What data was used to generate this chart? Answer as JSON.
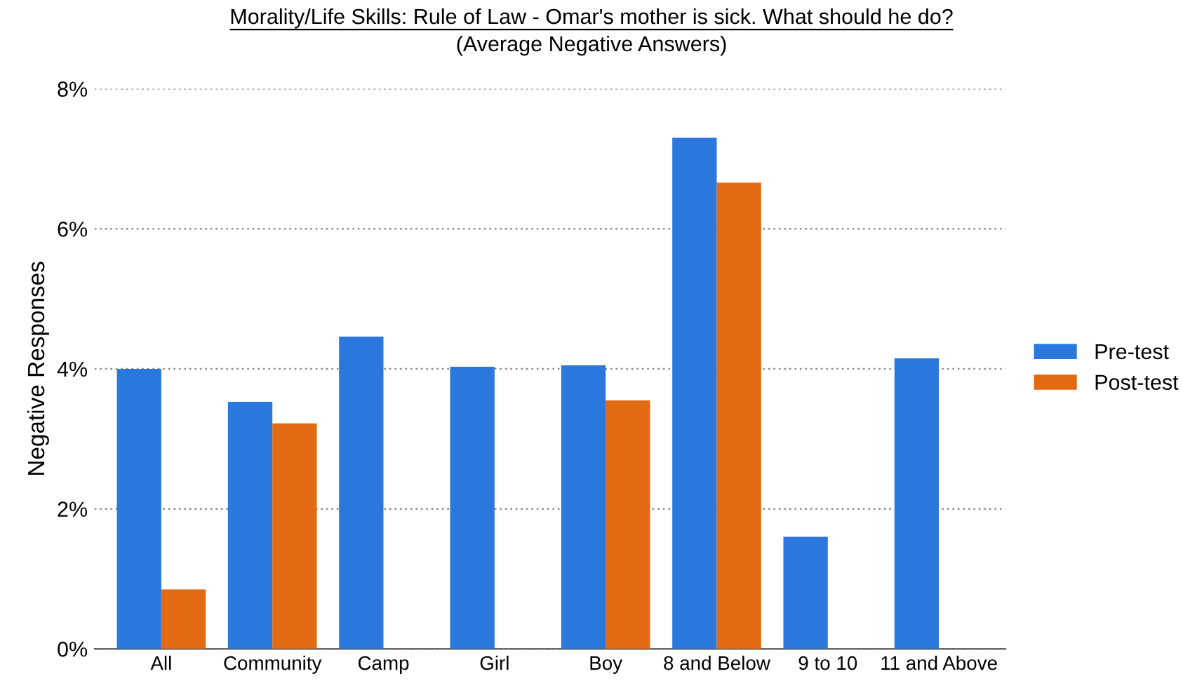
{
  "chart_data": {
    "type": "bar",
    "title": "Morality/Life Skills: Rule of Law - Omar's mother is sick. What should he do?",
    "subtitle": "(Average Negative Answers)",
    "ylabel": "Negative Responses",
    "categories": [
      "All",
      "Community",
      "Camp",
      "Girl",
      "Boy",
      "8 and Below",
      "9 to 10",
      "11 and Above"
    ],
    "series": [
      {
        "name": "Pre-test",
        "color": "#2a78de",
        "values": [
          4.0,
          3.53,
          4.46,
          4.03,
          4.05,
          7.3,
          1.6,
          4.15
        ]
      },
      {
        "name": "Post-test",
        "color": "#e26a12",
        "values": [
          0.85,
          3.22,
          null,
          null,
          3.55,
          6.66,
          null,
          null
        ]
      }
    ],
    "ylim": [
      0,
      8
    ],
    "yticks": [
      {
        "value": 0,
        "label": "0%"
      },
      {
        "value": 2,
        "label": "2%"
      },
      {
        "value": 4,
        "label": "4%"
      },
      {
        "value": 6,
        "label": "6%"
      },
      {
        "value": 8,
        "label": "8%"
      }
    ],
    "grid": "y",
    "legend": "right"
  }
}
